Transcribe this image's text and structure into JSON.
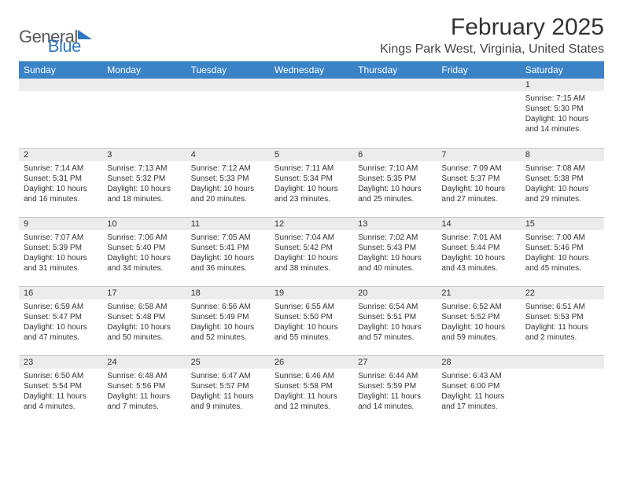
{
  "logo": {
    "text1": "General",
    "text2": "Blue"
  },
  "title": "February 2025",
  "location": "Kings Park West, Virginia, United States",
  "colors": {
    "header_bg": "#3b83c7",
    "header_fg": "#ffffff",
    "daynum_bg": "#ececec",
    "border": "#c4c8cc",
    "logo_gray": "#59595b",
    "logo_blue": "#2f78c2"
  },
  "fonts": {
    "title_size": 30,
    "location_size": 16,
    "header_size": 12,
    "body_size": 10
  },
  "day_names": [
    "Sunday",
    "Monday",
    "Tuesday",
    "Wednesday",
    "Thursday",
    "Friday",
    "Saturday"
  ],
  "weeks": [
    [
      {
        "n": "",
        "lines": []
      },
      {
        "n": "",
        "lines": []
      },
      {
        "n": "",
        "lines": []
      },
      {
        "n": "",
        "lines": []
      },
      {
        "n": "",
        "lines": []
      },
      {
        "n": "",
        "lines": []
      },
      {
        "n": "1",
        "lines": [
          "Sunrise: 7:15 AM",
          "Sunset: 5:30 PM",
          "Daylight: 10 hours and 14 minutes."
        ]
      }
    ],
    [
      {
        "n": "2",
        "lines": [
          "Sunrise: 7:14 AM",
          "Sunset: 5:31 PM",
          "Daylight: 10 hours and 16 minutes."
        ]
      },
      {
        "n": "3",
        "lines": [
          "Sunrise: 7:13 AM",
          "Sunset: 5:32 PM",
          "Daylight: 10 hours and 18 minutes."
        ]
      },
      {
        "n": "4",
        "lines": [
          "Sunrise: 7:12 AM",
          "Sunset: 5:33 PM",
          "Daylight: 10 hours and 20 minutes."
        ]
      },
      {
        "n": "5",
        "lines": [
          "Sunrise: 7:11 AM",
          "Sunset: 5:34 PM",
          "Daylight: 10 hours and 23 minutes."
        ]
      },
      {
        "n": "6",
        "lines": [
          "Sunrise: 7:10 AM",
          "Sunset: 5:35 PM",
          "Daylight: 10 hours and 25 minutes."
        ]
      },
      {
        "n": "7",
        "lines": [
          "Sunrise: 7:09 AM",
          "Sunset: 5:37 PM",
          "Daylight: 10 hours and 27 minutes."
        ]
      },
      {
        "n": "8",
        "lines": [
          "Sunrise: 7:08 AM",
          "Sunset: 5:38 PM",
          "Daylight: 10 hours and 29 minutes."
        ]
      }
    ],
    [
      {
        "n": "9",
        "lines": [
          "Sunrise: 7:07 AM",
          "Sunset: 5:39 PM",
          "Daylight: 10 hours and 31 minutes."
        ]
      },
      {
        "n": "10",
        "lines": [
          "Sunrise: 7:06 AM",
          "Sunset: 5:40 PM",
          "Daylight: 10 hours and 34 minutes."
        ]
      },
      {
        "n": "11",
        "lines": [
          "Sunrise: 7:05 AM",
          "Sunset: 5:41 PM",
          "Daylight: 10 hours and 36 minutes."
        ]
      },
      {
        "n": "12",
        "lines": [
          "Sunrise: 7:04 AM",
          "Sunset: 5:42 PM",
          "Daylight: 10 hours and 38 minutes."
        ]
      },
      {
        "n": "13",
        "lines": [
          "Sunrise: 7:02 AM",
          "Sunset: 5:43 PM",
          "Daylight: 10 hours and 40 minutes."
        ]
      },
      {
        "n": "14",
        "lines": [
          "Sunrise: 7:01 AM",
          "Sunset: 5:44 PM",
          "Daylight: 10 hours and 43 minutes."
        ]
      },
      {
        "n": "15",
        "lines": [
          "Sunrise: 7:00 AM",
          "Sunset: 5:46 PM",
          "Daylight: 10 hours and 45 minutes."
        ]
      }
    ],
    [
      {
        "n": "16",
        "lines": [
          "Sunrise: 6:59 AM",
          "Sunset: 5:47 PM",
          "Daylight: 10 hours and 47 minutes."
        ]
      },
      {
        "n": "17",
        "lines": [
          "Sunrise: 6:58 AM",
          "Sunset: 5:48 PM",
          "Daylight: 10 hours and 50 minutes."
        ]
      },
      {
        "n": "18",
        "lines": [
          "Sunrise: 6:56 AM",
          "Sunset: 5:49 PM",
          "Daylight: 10 hours and 52 minutes."
        ]
      },
      {
        "n": "19",
        "lines": [
          "Sunrise: 6:55 AM",
          "Sunset: 5:50 PM",
          "Daylight: 10 hours and 55 minutes."
        ]
      },
      {
        "n": "20",
        "lines": [
          "Sunrise: 6:54 AM",
          "Sunset: 5:51 PM",
          "Daylight: 10 hours and 57 minutes."
        ]
      },
      {
        "n": "21",
        "lines": [
          "Sunrise: 6:52 AM",
          "Sunset: 5:52 PM",
          "Daylight: 10 hours and 59 minutes."
        ]
      },
      {
        "n": "22",
        "lines": [
          "Sunrise: 6:51 AM",
          "Sunset: 5:53 PM",
          "Daylight: 11 hours and 2 minutes."
        ]
      }
    ],
    [
      {
        "n": "23",
        "lines": [
          "Sunrise: 6:50 AM",
          "Sunset: 5:54 PM",
          "Daylight: 11 hours and 4 minutes."
        ]
      },
      {
        "n": "24",
        "lines": [
          "Sunrise: 6:48 AM",
          "Sunset: 5:56 PM",
          "Daylight: 11 hours and 7 minutes."
        ]
      },
      {
        "n": "25",
        "lines": [
          "Sunrise: 6:47 AM",
          "Sunset: 5:57 PM",
          "Daylight: 11 hours and 9 minutes."
        ]
      },
      {
        "n": "26",
        "lines": [
          "Sunrise: 6:46 AM",
          "Sunset: 5:58 PM",
          "Daylight: 11 hours and 12 minutes."
        ]
      },
      {
        "n": "27",
        "lines": [
          "Sunrise: 6:44 AM",
          "Sunset: 5:59 PM",
          "Daylight: 11 hours and 14 minutes."
        ]
      },
      {
        "n": "28",
        "lines": [
          "Sunrise: 6:43 AM",
          "Sunset: 6:00 PM",
          "Daylight: 11 hours and 17 minutes."
        ]
      },
      {
        "n": "",
        "lines": []
      }
    ]
  ]
}
